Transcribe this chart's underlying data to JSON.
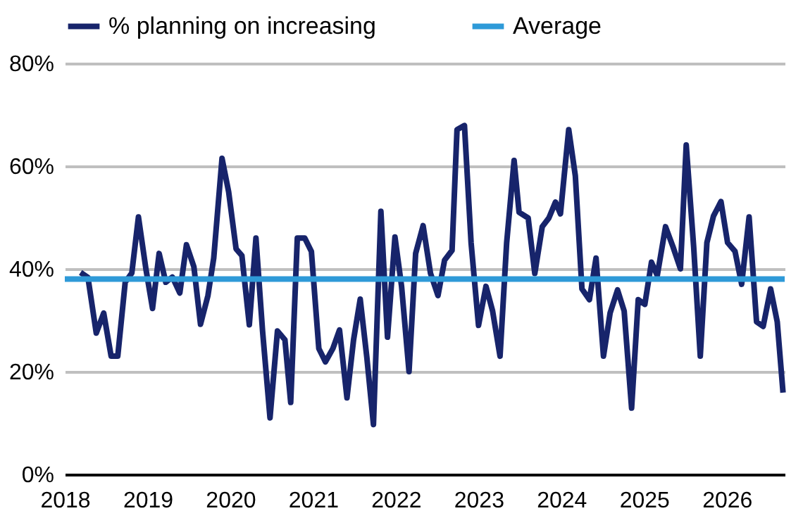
{
  "chart_data": {
    "type": "line",
    "x": [
      2018.19,
      2018.28,
      2018.38,
      2018.47,
      2018.56,
      2018.64,
      2018.73,
      2018.81,
      2018.89,
      2018.98,
      2019.06,
      2019.14,
      2019.22,
      2019.3,
      2019.39,
      2019.47,
      2019.56,
      2019.64,
      2019.73,
      2019.8,
      2019.9,
      2019.98,
      2020.07,
      2020.14,
      2020.23,
      2020.31,
      2020.39,
      2020.48,
      2020.57,
      2020.66,
      2020.73,
      2020.81,
      2020.9,
      2020.98,
      2021.07,
      2021.15,
      2021.24,
      2021.32,
      2021.41,
      2021.49,
      2021.57,
      2021.65,
      2021.73,
      2021.82,
      2021.9,
      2021.99,
      2022.07,
      2022.16,
      2022.24,
      2022.33,
      2022.42,
      2022.51,
      2022.59,
      2022.68,
      2022.74,
      2022.83,
      2022.91,
      2023.0,
      2023.09,
      2023.17,
      2023.26,
      2023.34,
      2023.43,
      2023.49,
      2023.6,
      2023.68,
      2023.77,
      2023.85,
      2023.93,
      2023.99,
      2024.09,
      2024.17,
      2024.25,
      2024.34,
      2024.42,
      2024.51,
      2024.59,
      2024.68,
      2024.76,
      2024.85,
      2024.93,
      2025.01,
      2025.09,
      2025.16,
      2025.26,
      2025.35,
      2025.44,
      2025.51,
      2025.6,
      2025.68,
      2025.76,
      2025.84,
      2025.93,
      2026.01,
      2026.1,
      2026.18,
      2026.27,
      2026.36,
      2026.44,
      2026.53,
      2026.61,
      2026.68
    ],
    "series": [
      {
        "name": "% planning on increasing",
        "color": "#17246b",
        "values": [
          39.3,
          38.3,
          27.5,
          31.4,
          23.0,
          23.0,
          37.4,
          39.2,
          50.1,
          40.0,
          32.3,
          43.0,
          37.4,
          38.4,
          35.3,
          44.7,
          40.4,
          29.2,
          34.8,
          42.1,
          61.5,
          55.0,
          43.9,
          42.6,
          29.1,
          46.0,
          27.9,
          11.0,
          27.9,
          26.2,
          14.0,
          46.0,
          46.0,
          43.4,
          24.5,
          21.9,
          24.5,
          28.1,
          14.9,
          26.2,
          34.1,
          22.8,
          9.7,
          51.2,
          26.7,
          46.2,
          36.6,
          20.0,
          43.0,
          48.4,
          39.1,
          34.8,
          41.7,
          43.6,
          67.1,
          67.9,
          45.1,
          29.0,
          36.6,
          31.8,
          23.0,
          45.1,
          61.1,
          51.0,
          49.9,
          39.1,
          48.2,
          49.9,
          53.0,
          50.7,
          67.1,
          58.1,
          36.1,
          34.0,
          42.1,
          23.0,
          31.4,
          35.9,
          31.8,
          12.9,
          34.0,
          33.1,
          41.3,
          38.7,
          48.2,
          44.3,
          40.0,
          64.1,
          44.3,
          23.0,
          45.1,
          50.3,
          53.1,
          45.1,
          43.4,
          37.0,
          50.1,
          29.7,
          28.8,
          36.1,
          29.7,
          15.9
        ]
      }
    ],
    "ref_lines": [
      {
        "axis": "y",
        "value": 38,
        "label": "Average",
        "color": "#2e9ad8"
      }
    ],
    "xlim": [
      2018,
      2026.7
    ],
    "xticks": [
      2018,
      2019,
      2020,
      2021,
      2022,
      2023,
      2024,
      2025,
      2026
    ],
    "ylim": [
      0,
      80
    ],
    "yticks": [
      {
        "value": 0,
        "label": "0%"
      },
      {
        "value": 20,
        "label": "20%"
      },
      {
        "value": 40,
        "label": "40%"
      },
      {
        "value": 60,
        "label": "60%"
      },
      {
        "value": 80,
        "label": "80%"
      }
    ],
    "grid": "y",
    "legend": "top",
    "line_style": "solid",
    "marker": "none"
  }
}
